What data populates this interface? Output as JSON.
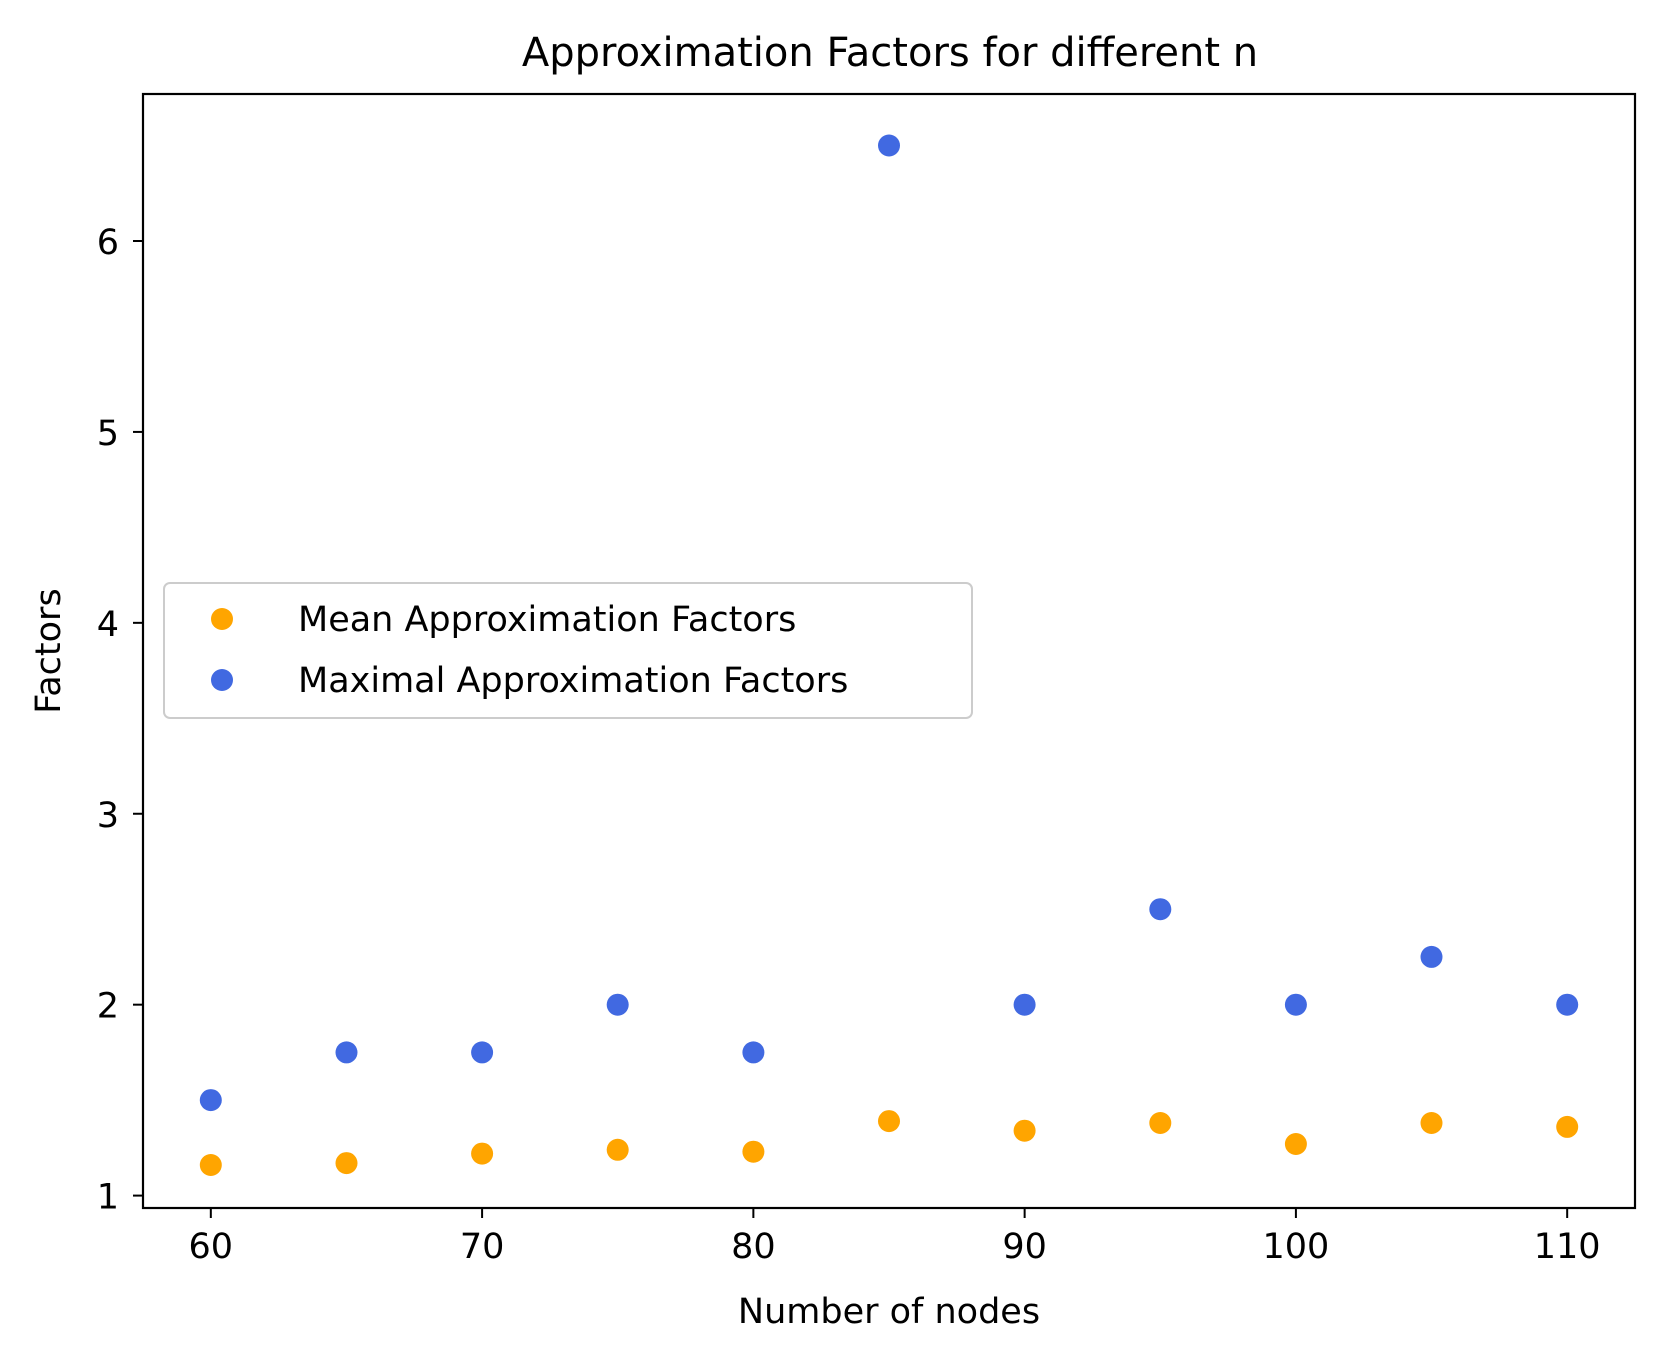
{
  "chart_data": {
    "type": "scatter",
    "title": "Approximation Factors for different n",
    "xlabel": "Number of nodes",
    "ylabel": "Factors",
    "xlim": [
      57.5,
      112.5
    ],
    "ylim": [
      0.935,
      6.77
    ],
    "xticks": [
      60,
      70,
      80,
      90,
      100,
      110
    ],
    "yticks": [
      1,
      2,
      3,
      4,
      5,
      6
    ],
    "grid": false,
    "legend_position": "center-left",
    "x": [
      60,
      65,
      70,
      75,
      80,
      85,
      90,
      95,
      100,
      105,
      110
    ],
    "series": [
      {
        "name": "Mean Approximation Factors",
        "color": "#ffa500",
        "values": [
          1.16,
          1.17,
          1.22,
          1.24,
          1.23,
          1.39,
          1.34,
          1.38,
          1.27,
          1.38,
          1.36
        ]
      },
      {
        "name": "Maximal Approximation Factors",
        "color": "#4169e1",
        "values": [
          1.5,
          1.75,
          1.75,
          2.0,
          1.75,
          6.5,
          2.0,
          2.5,
          2.0,
          2.25,
          2.0
        ]
      }
    ]
  }
}
